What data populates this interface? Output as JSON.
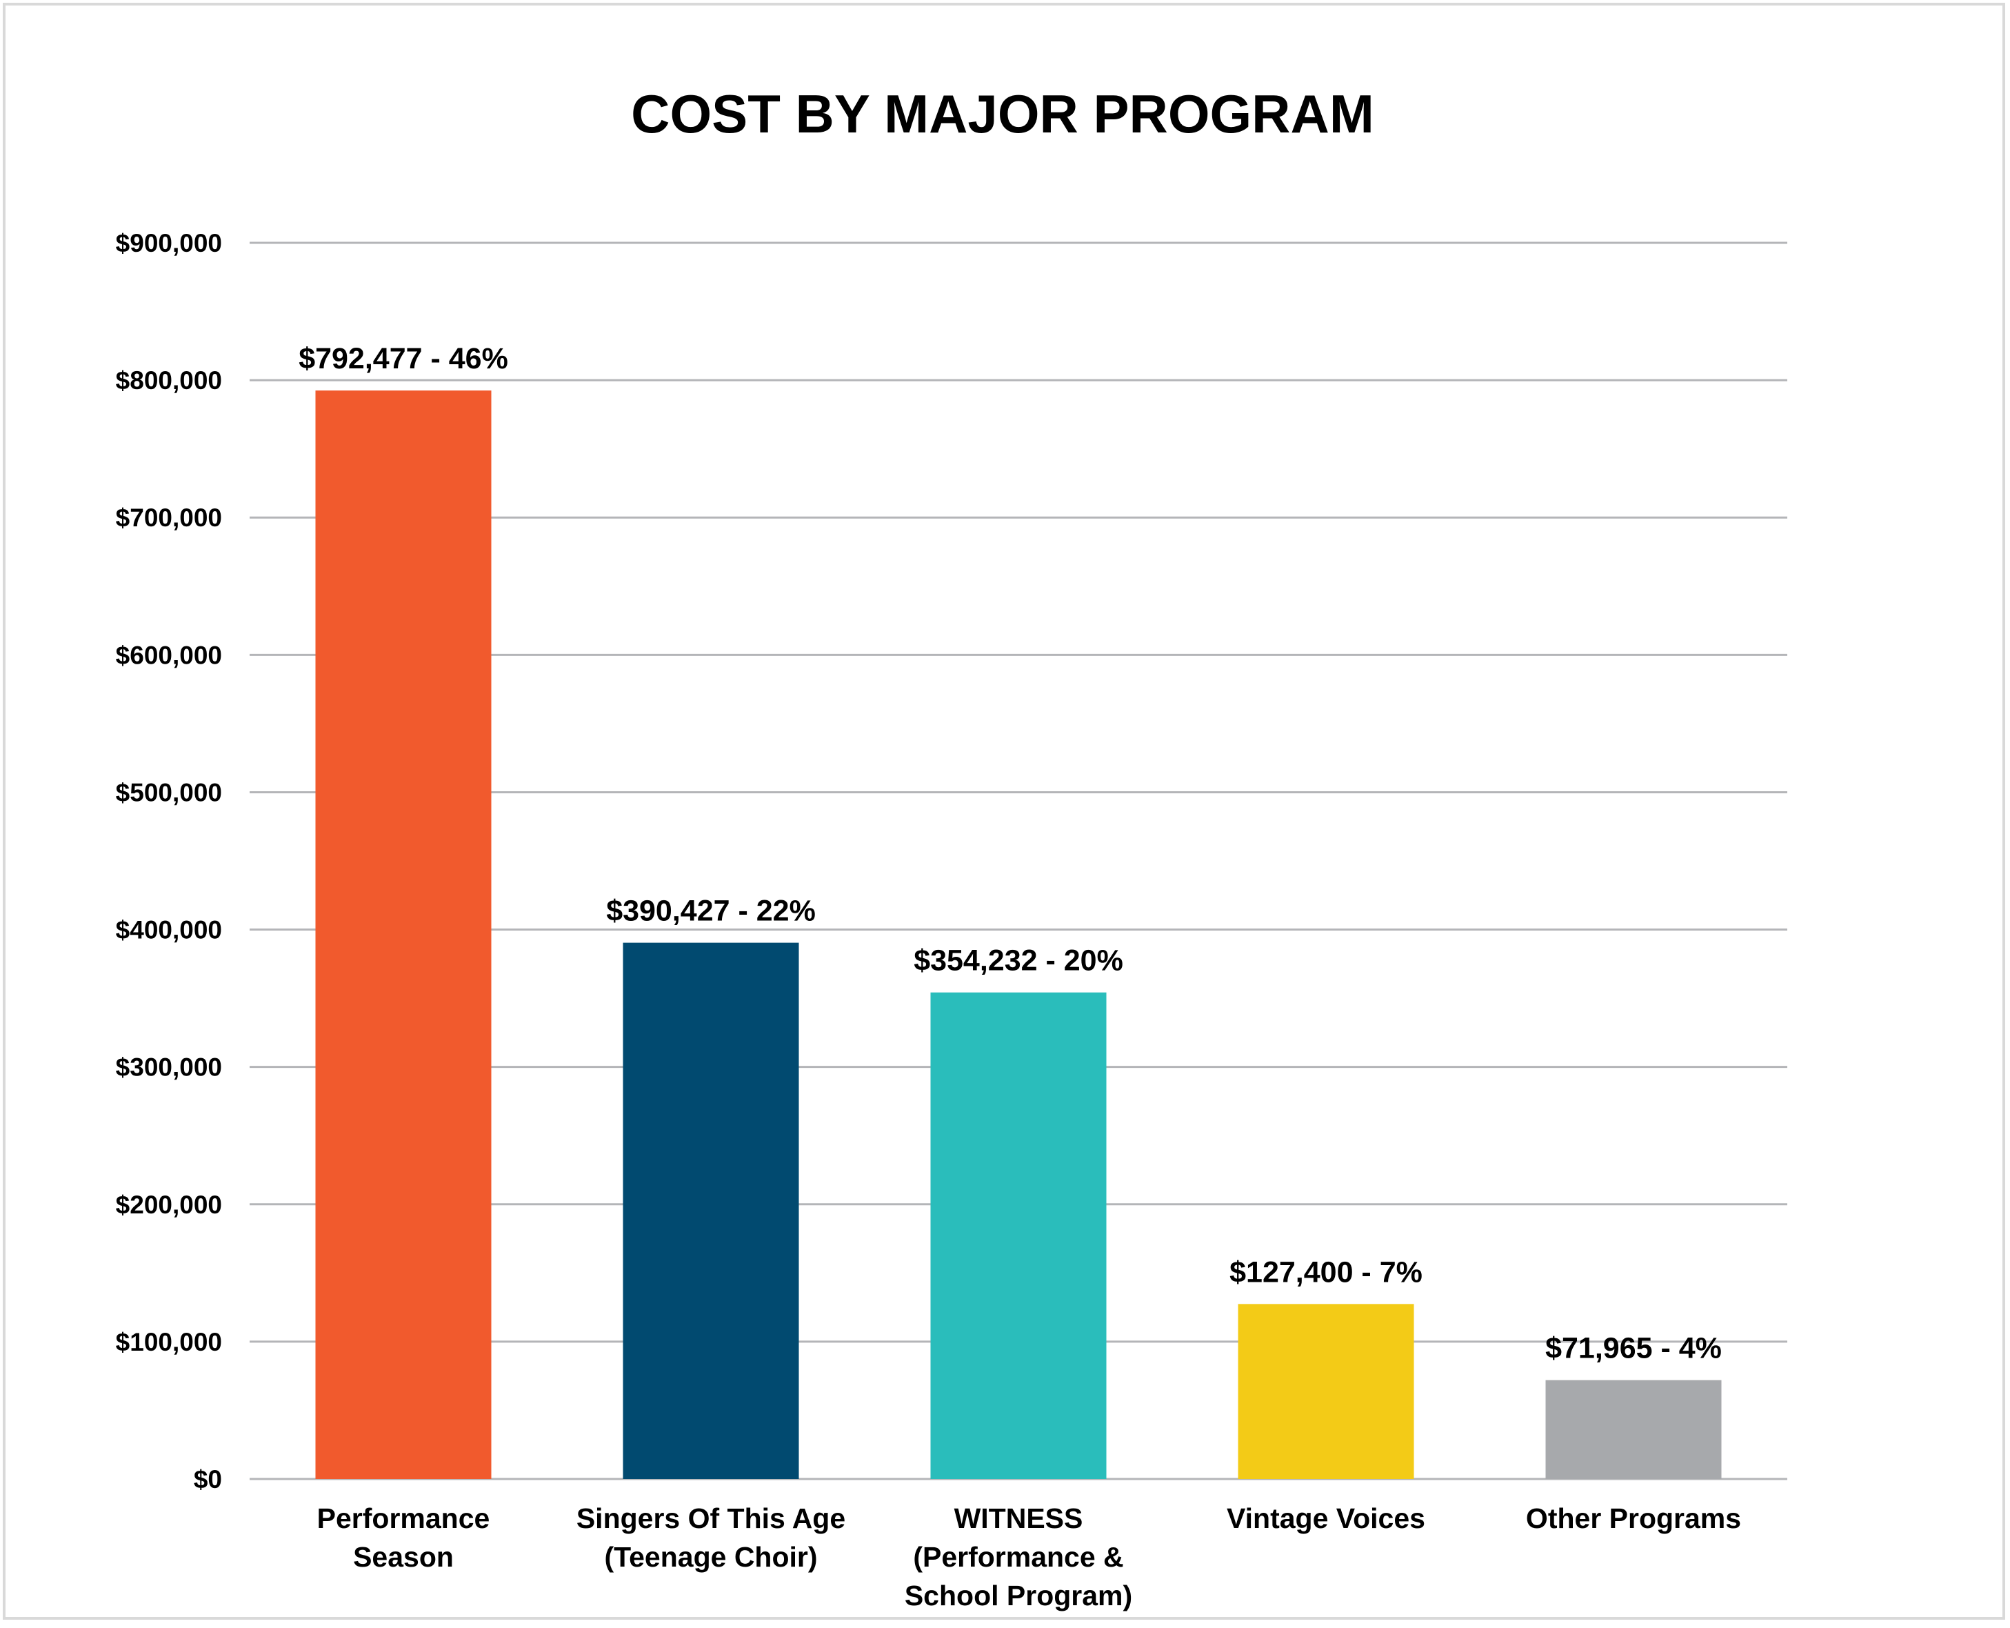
{
  "chart_data": {
    "type": "bar",
    "title": "COST BY MAJOR PROGRAM",
    "xlabel": "",
    "ylabel": "",
    "ylim": [
      0,
      900000
    ],
    "grid": true,
    "legend": "none",
    "yticks": [
      0,
      100000,
      200000,
      300000,
      400000,
      500000,
      600000,
      700000,
      800000,
      900000
    ],
    "ytick_labels": [
      "$0",
      "$100,000",
      "$200,000",
      "$300,000",
      "$400,000",
      "$500,000",
      "$600,000",
      "$700,000",
      "$800,000",
      "$900,000"
    ],
    "categories": [
      [
        "Performance",
        "Season"
      ],
      [
        "Singers Of This Age",
        "(Teenage Choir)"
      ],
      [
        "WITNESS",
        "(Performance &",
        "School Program)"
      ],
      [
        "Vintage Voices"
      ],
      [
        "Other Programs"
      ]
    ],
    "values": [
      792477,
      390427,
      354232,
      127400,
      71965
    ],
    "percentages": [
      46,
      22,
      20,
      7,
      4
    ],
    "data_labels": [
      "$792,477 - 46%",
      "$390,427 - 22%",
      "$354,232 - 20%",
      "$127,400 - 7%",
      "$71,965 - 4%"
    ],
    "colors": [
      "#F15A2D",
      "#014A70",
      "#2ABDBB",
      "#F3CB17",
      "#A7A9AC"
    ]
  }
}
